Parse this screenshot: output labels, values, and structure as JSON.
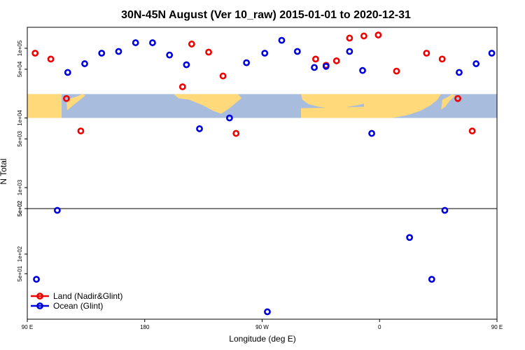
{
  "chart_data": {
    "type": "scatter",
    "title": "30N-45N August (Ver 10_raw)   2015-01-01 to 2020-12-31",
    "xlabel": "Longitude (deg E)",
    "ylabel": "N Total",
    "x_range_deg_east_unwrapped": [
      90,
      450
    ],
    "x_ticks": [
      {
        "value": 90,
        "label": "90 E"
      },
      {
        "value": 180,
        "label": "180"
      },
      {
        "value": 270,
        "label": "90 W"
      },
      {
        "value": 360,
        "label": "0"
      },
      {
        "value": 450,
        "label": "90 E"
      },
      {
        "value": 540,
        "label": "180"
      }
    ],
    "panels": [
      {
        "name": "upper",
        "y_scale": "log",
        "ylim": [
          500,
          200000
        ],
        "y_ticks": [
          {
            "value": 500,
            "label": "5e+02"
          },
          {
            "value": 1000,
            "label": "1e+03"
          },
          {
            "value": 5000,
            "label": "5e+03"
          },
          {
            "value": 10000,
            "label": "1e+04"
          },
          {
            "value": 50000,
            "label": "5e+04"
          },
          {
            "value": 100000,
            "label": "1e+05"
          }
        ],
        "map_band": {
          "ymin": 10000,
          "ymax": 22000
        }
      },
      {
        "name": "lower",
        "y_scale": "log",
        "ylim": [
          10,
          500
        ],
        "y_ticks": [
          {
            "value": 50,
            "label": "5e+01"
          },
          {
            "value": 100,
            "label": "1e+02"
          },
          {
            "value": 500,
            "label": "5e+02"
          }
        ]
      }
    ],
    "series": [
      {
        "name": "Land (Nadir&Glint)",
        "color": "#ee0000",
        "points": [
          {
            "x": 96,
            "y": 85000
          },
          {
            "x": 108,
            "y": 70000
          },
          {
            "x": 120,
            "y": 19000
          },
          {
            "x": 131,
            "y": 6500
          },
          {
            "x": 209,
            "y": 28000
          },
          {
            "x": 216,
            "y": 115000
          },
          {
            "x": 229,
            "y": 88000
          },
          {
            "x": 240,
            "y": 40000
          },
          {
            "x": 250,
            "y": 6000
          },
          {
            "x": 311,
            "y": 70000
          },
          {
            "x": 319,
            "y": 57000
          },
          {
            "x": 327,
            "y": 66000
          },
          {
            "x": 337,
            "y": 140000
          },
          {
            "x": 348,
            "y": 150000
          },
          {
            "x": 359,
            "y": 155000
          },
          {
            "x": 373,
            "y": 47000
          },
          {
            "x": 396,
            "y": 85000
          },
          {
            "x": 408,
            "y": 70000
          },
          {
            "x": 420,
            "y": 19000
          },
          {
            "x": 431,
            "y": 6500
          }
        ]
      },
      {
        "name": "Ocean (Glint)",
        "color": "#0000dd",
        "points": [
          {
            "x": 97,
            "y": 41
          },
          {
            "x": 113,
            "y": 470
          },
          {
            "x": 121,
            "y": 45000
          },
          {
            "x": 134,
            "y": 60000
          },
          {
            "x": 147,
            "y": 85000
          },
          {
            "x": 160,
            "y": 90000
          },
          {
            "x": 173,
            "y": 120000
          },
          {
            "x": 186,
            "y": 120000
          },
          {
            "x": 199,
            "y": 80000
          },
          {
            "x": 212,
            "y": 58000
          },
          {
            "x": 222,
            "y": 7000
          },
          {
            "x": 245,
            "y": 10000
          },
          {
            "x": 258,
            "y": 62000
          },
          {
            "x": 272,
            "y": 85000
          },
          {
            "x": 285,
            "y": 130000
          },
          {
            "x": 297,
            "y": 90000
          },
          {
            "x": 310,
            "y": 53000
          },
          {
            "x": 319,
            "y": 55000
          },
          {
            "x": 337,
            "y": 90000
          },
          {
            "x": 347,
            "y": 48000
          },
          {
            "x": 354,
            "y": 6000
          },
          {
            "x": 383,
            "y": 180
          },
          {
            "x": 400,
            "y": 41
          },
          {
            "x": 410,
            "y": 470
          },
          {
            "x": 421,
            "y": 45000
          },
          {
            "x": 434,
            "y": 60000
          },
          {
            "x": 446,
            "y": 85000
          },
          {
            "x": 460,
            "y": 90000
          },
          {
            "x": 274,
            "y": 13
          }
        ]
      }
    ],
    "legend": {
      "position": "bottom-left",
      "entries": [
        {
          "label": "Land (Nadir&Glint)",
          "color": "#ee0000"
        },
        {
          "label": "Ocean (Glint)",
          "color": "#0000dd"
        }
      ]
    },
    "grid": false,
    "colors": {
      "land_band": "#ffd97a",
      "ocean_band": "#a8bcdd"
    }
  }
}
